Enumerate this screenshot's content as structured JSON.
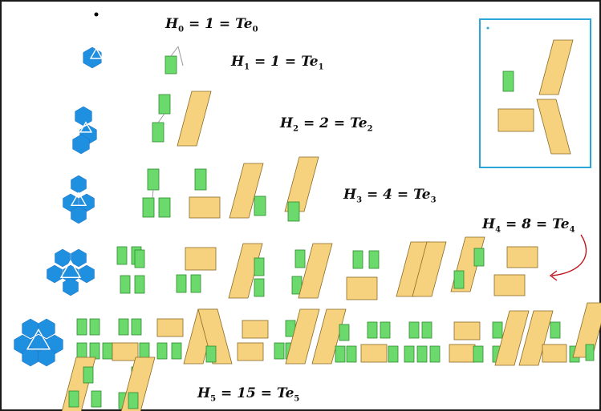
{
  "equations": [
    {
      "lhs": "H",
      "sub_l": "0",
      "n": "1",
      "rhs": "Te",
      "sub_r": "0"
    },
    {
      "lhs": "H",
      "sub_l": "1",
      "n": "1",
      "rhs": "Te",
      "sub_r": "1"
    },
    {
      "lhs": "H",
      "sub_l": "2",
      "n": "2",
      "rhs": "Te",
      "sub_r": "2"
    },
    {
      "lhs": "H",
      "sub_l": "3",
      "n": "4",
      "rhs": "Te",
      "sub_r": "3"
    },
    {
      "lhs": "H",
      "sub_l": "4",
      "n": "8",
      "rhs": "Te",
      "sub_r": "4"
    },
    {
      "lhs": "H",
      "sub_l": "5",
      "n": "15",
      "rhs": "Te",
      "sub_r": "5"
    }
  ],
  "colors": {
    "hexagon": "#1f8fe0",
    "green_rect": "#6bd96b",
    "orange_rect": "#f7d27e",
    "inset_border": "#2aa7d8",
    "arrow": "#c0141c",
    "frame": "#1a1a1a"
  },
  "icons": [
    "benzenoid-hexagon-icon",
    "green-square-tile-icon",
    "orange-rect-tile-icon",
    "red-curved-arrow-icon"
  ]
}
